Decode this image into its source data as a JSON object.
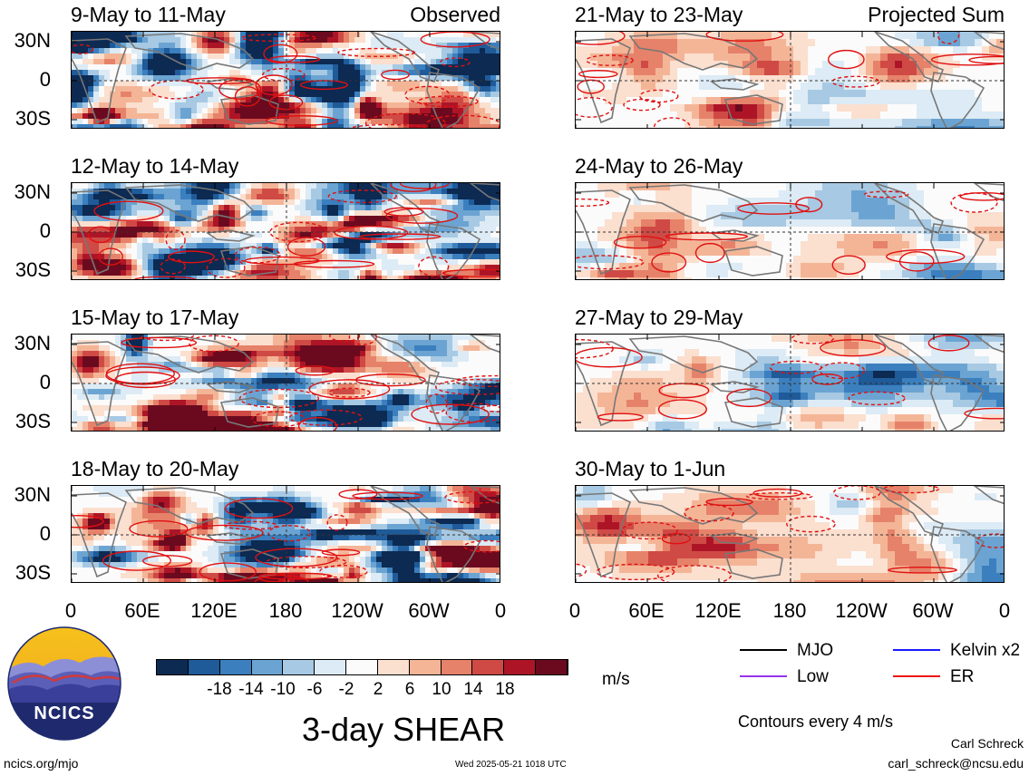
{
  "panels": [
    {
      "title": "9-May to 11-May",
      "tag": "Observed",
      "side": "left",
      "row": 0,
      "style": "observed"
    },
    {
      "title": "12-May to 14-May",
      "tag": "",
      "side": "left",
      "row": 1,
      "style": "observed"
    },
    {
      "title": "15-May to 17-May",
      "tag": "",
      "side": "left",
      "row": 2,
      "style": "observed"
    },
    {
      "title": "18-May to 20-May",
      "tag": "",
      "side": "left",
      "row": 3,
      "style": "observed"
    },
    {
      "title": "21-May to 23-May",
      "tag": "Projected Sum",
      "side": "right",
      "row": 0,
      "style": "projected"
    },
    {
      "title": "24-May to 26-May",
      "tag": "",
      "side": "right",
      "row": 1,
      "style": "projected"
    },
    {
      "title": "27-May to 29-May",
      "tag": "",
      "side": "right",
      "row": 2,
      "style": "projected"
    },
    {
      "title": "30-May to 1-Jun",
      "tag": "",
      "side": "right",
      "row": 3,
      "style": "projected"
    }
  ],
  "lat_labels": [
    "30N",
    "0",
    "30S"
  ],
  "lon_labels": [
    "0",
    "60E",
    "120E",
    "180",
    "120W",
    "60W",
    "0"
  ],
  "colorbar": {
    "colors": [
      "#0c2a52",
      "#1f5a99",
      "#3b7fbe",
      "#6ba4d2",
      "#a7c9e3",
      "#dcebf5",
      "#fbfbfb",
      "#fbdfcf",
      "#f4b597",
      "#e6826a",
      "#cf4a45",
      "#ad1527",
      "#6b0a1f"
    ],
    "labels": [
      "-18",
      "-14",
      "-10",
      "-6",
      "-2",
      "2",
      "6",
      "10",
      "14",
      "18"
    ],
    "units": "m/s"
  },
  "legend": {
    "items": [
      {
        "label": "MJO",
        "color": "#000000"
      },
      {
        "label": "Kelvin x2",
        "color": "#1a1aff"
      },
      {
        "label": "Low",
        "color": "#9933ee"
      },
      {
        "label": "ER",
        "color": "#ee1111"
      }
    ],
    "contour_note": "Contours every 4 m/s"
  },
  "main_title": "3-day SHEAR",
  "logo_text": "NCICS",
  "footer": {
    "site": "ncics.org/mjo",
    "timestamp": "Wed 2025-05-21 1018 UTC",
    "author": "Carl Schreck",
    "email": "carl_schreck@ncsu.edu"
  }
}
